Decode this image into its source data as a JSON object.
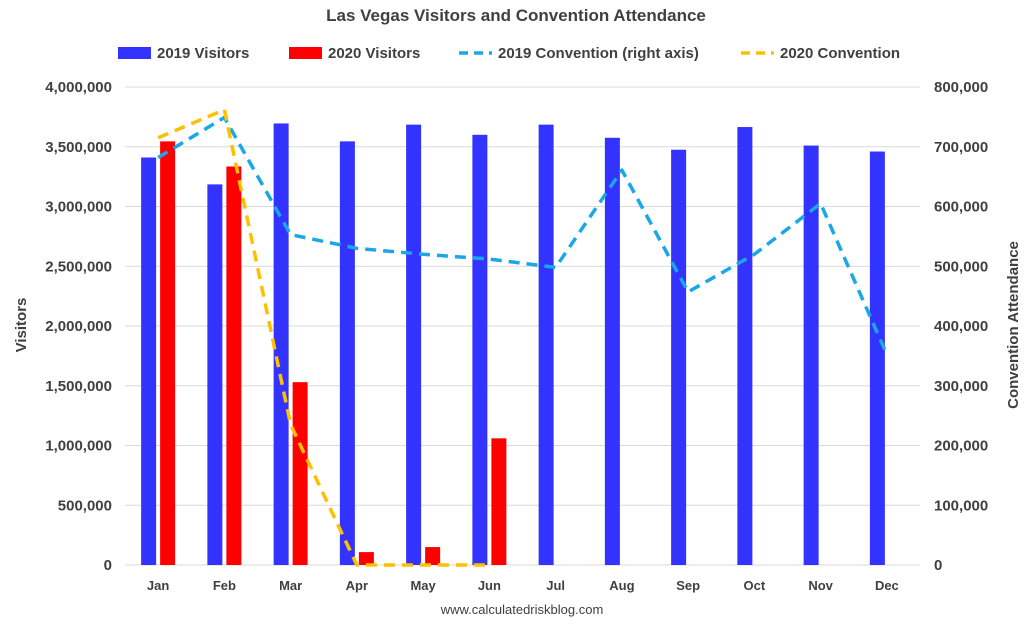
{
  "chart_data": {
    "type": "bar",
    "title": "Las Vegas Visitors and Convention Attendance",
    "categories": [
      "Jan",
      "Feb",
      "Mar",
      "Apr",
      "May",
      "Jun",
      "Jul",
      "Aug",
      "Sep",
      "Oct",
      "Nov",
      "Dec"
    ],
    "series": [
      {
        "name": "2019 Visitors",
        "type": "bar",
        "axis": "left",
        "color": "#3333ff",
        "values": [
          3410000,
          3185000,
          3695000,
          3545000,
          3685000,
          3600000,
          3685000,
          3575000,
          3475000,
          3665000,
          3510000,
          3460000
        ]
      },
      {
        "name": "2020 Visitors",
        "type": "bar",
        "axis": "left",
        "color": "#ff0000",
        "values": [
          3545000,
          3335000,
          1530000,
          108000,
          150000,
          1060000,
          null,
          null,
          null,
          null,
          null,
          null
        ]
      },
      {
        "name": "2019 Convention (right axis)",
        "type": "line",
        "axis": "right",
        "dashed": true,
        "color": "#1aa7e8",
        "values": [
          682000,
          749000,
          553000,
          530000,
          520000,
          512000,
          498000,
          661000,
          457000,
          520000,
          605000,
          352000
        ]
      },
      {
        "name": "2020 Convention",
        "type": "line",
        "axis": "right",
        "dashed": true,
        "color": "#ffc000",
        "values": [
          715000,
          762000,
          235000,
          0,
          0,
          0,
          null,
          null,
          null,
          null,
          null,
          null
        ]
      }
    ],
    "ylabel": "Visitors",
    "y2label": "Convention Attendance",
    "ylim": [
      0,
      4000000
    ],
    "y2lim": [
      0,
      800000
    ],
    "yticks": [
      "0",
      "500,000",
      "1,000,000",
      "1,500,000",
      "2,000,000",
      "2,500,000",
      "3,000,000",
      "3,500,000",
      "4,000,000"
    ],
    "y2ticks": [
      "0",
      "100,000",
      "200,000",
      "300,000",
      "400,000",
      "500,000",
      "600,000",
      "700,000",
      "800,000"
    ],
    "grid": true,
    "legend": "top",
    "source": "www.calculatedriskblog.com"
  }
}
